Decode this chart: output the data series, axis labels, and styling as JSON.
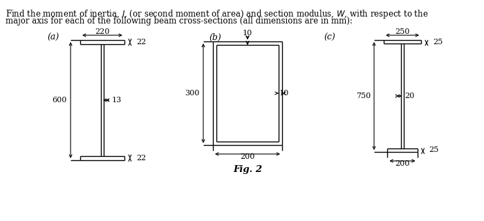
{
  "bg": "#ffffff",
  "lc": "#000000",
  "tc": "#000000",
  "title_line1": "Find the moment of inertia, I, (or second moment of area) and section modulus, W, with respect to the",
  "title_line2": "major axis for each of the following beam cross-sections (all dimensions are in mm):",
  "fig_label": "Fig. 2",
  "a_label": "(a)",
  "b_label": "(b)",
  "c_label": "(c)",
  "dim_a_220": "220",
  "dim_a_22t": "22",
  "dim_a_13": "13",
  "dim_a_600": "600",
  "dim_a_22b": "22",
  "dim_b_10t": "10",
  "dim_b_300": "300",
  "dim_b_10s": "10",
  "dim_b_200": "200",
  "dim_c_250": "250",
  "dim_c_25t": "25",
  "dim_c_20": "20",
  "dim_c_750": "750",
  "dim_c_25b": "25",
  "dim_c_200": "200"
}
